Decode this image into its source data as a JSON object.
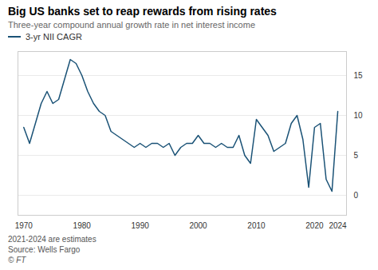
{
  "chart_data": {
    "type": "line",
    "title": "Big US banks set to reap rewards from rising rates",
    "subtitle": "Three-year compound annual growth rate in net interest income",
    "footnotes": [
      "2021-2024 are estimates",
      "Source: Wells Fargo",
      "© FT"
    ],
    "x": [
      1970,
      1971,
      1972,
      1973,
      1974,
      1975,
      1976,
      1977,
      1978,
      1979,
      1980,
      1981,
      1982,
      1983,
      1984,
      1985,
      1986,
      1987,
      1988,
      1989,
      1990,
      1991,
      1992,
      1993,
      1994,
      1995,
      1996,
      1997,
      1998,
      1999,
      2000,
      2001,
      2002,
      2003,
      2004,
      2005,
      2006,
      2007,
      2008,
      2009,
      2010,
      2011,
      2012,
      2013,
      2014,
      2015,
      2016,
      2017,
      2018,
      2019,
      2020,
      2021,
      2022,
      2023,
      2024
    ],
    "series": [
      {
        "name": "3-yr NII CAGR",
        "color": "#1a5276",
        "values": [
          8.5,
          6.5,
          9.0,
          11.5,
          13.0,
          11.5,
          12.0,
          14.5,
          17.0,
          16.5,
          15.0,
          13.0,
          11.5,
          10.5,
          10.0,
          8.0,
          7.5,
          7.0,
          6.5,
          6.0,
          6.5,
          6.0,
          6.5,
          6.5,
          6.0,
          6.5,
          5.0,
          6.0,
          6.5,
          6.5,
          7.5,
          6.5,
          6.5,
          6.0,
          6.5,
          6.0,
          6.0,
          7.5,
          5.0,
          4.0,
          9.5,
          8.5,
          7.5,
          5.5,
          6.0,
          6.5,
          9.0,
          10.0,
          7.0,
          1.0,
          8.5,
          9.0,
          2.0,
          0.5,
          10.5
        ]
      }
    ],
    "xlim": [
      1969,
      2025.5
    ],
    "xticks": [
      1970,
      1980,
      1990,
      2000,
      2010,
      2020,
      2024
    ],
    "ylim": [
      -2.5,
      18
    ],
    "yticks": [
      0,
      5,
      10,
      15
    ],
    "grid": true,
    "legend": "top"
  }
}
